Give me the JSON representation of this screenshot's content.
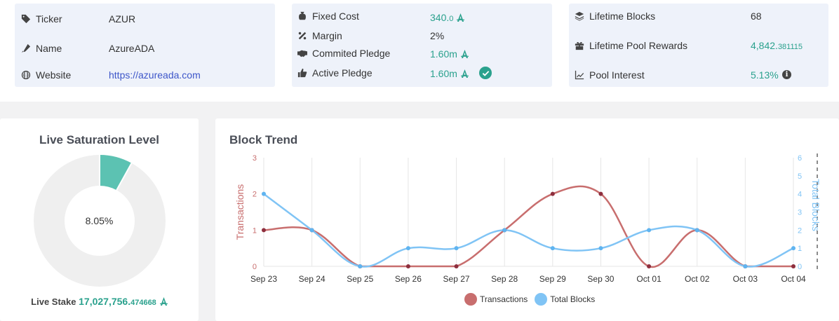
{
  "pool": {
    "ticker_label": "Ticker",
    "ticker": "AZUR",
    "name_label": "Name",
    "name": "AzureADA",
    "website_label": "Website",
    "website": "https://azureada.com"
  },
  "costs": {
    "fixed_cost_label": "Fixed Cost",
    "fixed_cost_main": "340.",
    "fixed_cost_dec": "0",
    "margin_label": "Margin",
    "margin": "2%",
    "committed_pledge_label": "Commited Pledge",
    "committed_pledge": "1.60m",
    "active_pledge_label": "Active Pledge",
    "active_pledge": "1.60m"
  },
  "stats": {
    "lifetime_blocks_label": "Lifetime Blocks",
    "lifetime_blocks": "68",
    "lifetime_rewards_label": "Lifetime Pool Rewards",
    "lifetime_rewards_main": "4,842.",
    "lifetime_rewards_dec": "381115",
    "pool_interest_label": "Pool Interest",
    "pool_interest": "5.13%"
  },
  "saturation": {
    "title": "Live Saturation Level",
    "percent_label": "8.05%",
    "percent": 8.05,
    "stake_label": "Live Stake",
    "stake_main": "17,027,756.",
    "stake_dec": "474668"
  },
  "colors": {
    "accent": "#2aa18d",
    "link": "#3d56c9",
    "donut": "#5cc2b2",
    "donut_bg": "#efefef",
    "transactions": "#c86e6e",
    "blocks": "#80c4f5"
  },
  "chart_data": {
    "type": "line",
    "title": "Block Trend",
    "categories": [
      "Sep 23",
      "Sep 24",
      "Sep 25",
      "Sep 26",
      "Sep 27",
      "Sep 28",
      "Sep 29",
      "Sep 30",
      "Oct 01",
      "Oct 02",
      "Oct 03",
      "Oct 04"
    ],
    "series": [
      {
        "name": "Transactions",
        "axis": "left",
        "values": [
          1,
          1,
          0,
          0,
          0,
          1,
          2,
          2,
          0,
          1,
          0,
          0
        ]
      },
      {
        "name": "Total Blocks",
        "axis": "right",
        "values": [
          4,
          2,
          0,
          1,
          1,
          2,
          1,
          1,
          2,
          2,
          0,
          1
        ]
      }
    ],
    "ylabel_left": "Transactions",
    "ylabel_right": "Total Blocks",
    "ylim_left": [
      0,
      3
    ],
    "ylim_right": [
      0,
      6
    ],
    "yticks_left": [
      "0",
      "1",
      "2",
      "3"
    ],
    "yticks_right": [
      "0",
      "1",
      "2",
      "3",
      "4",
      "5",
      "6"
    ],
    "grid": "vertical",
    "legend": "bottom"
  }
}
